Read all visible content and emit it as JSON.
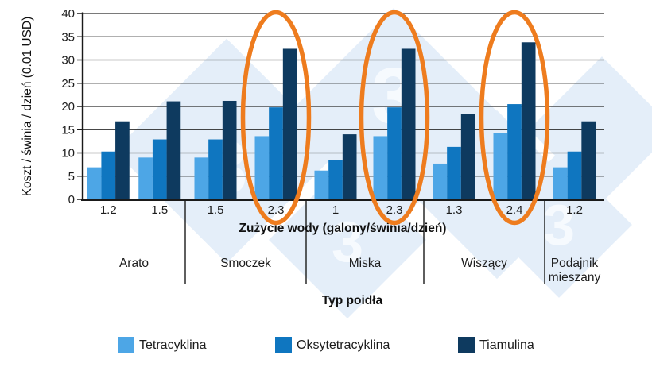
{
  "chart_data": {
    "type": "bar",
    "title": "",
    "ylabel": "Koszt / świnia / dzień (0.01 USD)",
    "xlabel": "Zużycie wody (galony/świnia/dzień)",
    "group_axis_label": "Typ poidła",
    "ylim": [
      0,
      40
    ],
    "ytick_step": 5,
    "grid": true,
    "legend_position": "bottom",
    "x_tick_labels": [
      "1.2",
      "1.5",
      "1.5",
      "2.3",
      "1",
      "2.3",
      "1.3",
      "2.4",
      "1.2"
    ],
    "categories": [
      {
        "label": "Arato",
        "groups": 2
      },
      {
        "label": "Smoczek",
        "groups": 2
      },
      {
        "label": "Miska",
        "groups": 2
      },
      {
        "label": "Wiszący",
        "groups": 2
      },
      {
        "label": "Podajnik\nmieszany",
        "groups": 1
      }
    ],
    "series": [
      {
        "name": "Tetracyklina",
        "color": "#4DA6E6",
        "values": [
          6.9,
          9.0,
          9.0,
          13.6,
          6.2,
          13.6,
          7.7,
          14.3,
          6.9
        ]
      },
      {
        "name": "Oksytetracyklina",
        "color": "#0F76C0",
        "values": [
          10.3,
          12.9,
          12.9,
          19.8,
          8.5,
          19.8,
          11.3,
          20.5,
          10.3
        ]
      },
      {
        "name": "Tiamulina",
        "color": "#0E3A5F",
        "values": [
          16.8,
          21.1,
          21.2,
          32.4,
          14.0,
          32.4,
          18.3,
          33.8,
          16.8
        ]
      }
    ],
    "circled_groups": [
      3,
      5,
      7
    ],
    "circle_color": "#EE7C1E",
    "watermark_text": "3",
    "watermark_color": "#E4EEF9",
    "axis_color": "#1a1a1a"
  }
}
